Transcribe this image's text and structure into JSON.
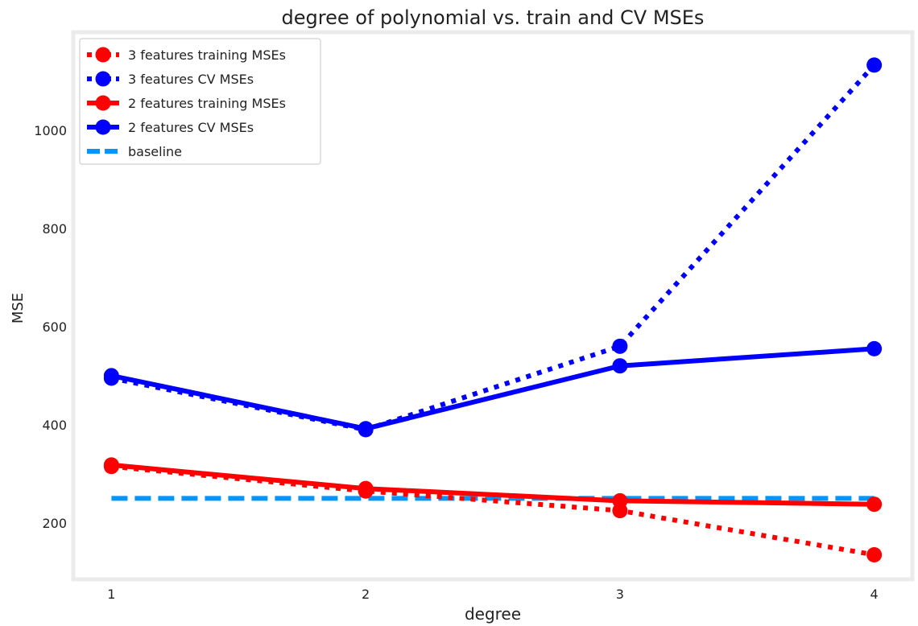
{
  "chart_data": {
    "type": "line",
    "title": "degree of polynomial vs. train and CV MSEs",
    "xlabel": "degree",
    "ylabel": "MSE",
    "x": [
      1,
      2,
      3,
      4
    ],
    "xlim": [
      0.85,
      4.15
    ],
    "ylim": [
      85,
      1200
    ],
    "xticks": [
      1,
      2,
      3,
      4
    ],
    "yticks": [
      200,
      400,
      600,
      800,
      1000
    ],
    "grid": false,
    "legend_position": "upper-left",
    "series": [
      {
        "name": "3 features training MSEs",
        "values": [
          315,
          265,
          225,
          135
        ],
        "color": "#ff0000",
        "style": "dotted",
        "marker": "circle"
      },
      {
        "name": "3 features CV MSEs",
        "values": [
          495,
          390,
          560,
          1133
        ],
        "color": "#0000ff",
        "style": "dotted",
        "marker": "circle"
      },
      {
        "name": "2 features training MSEs",
        "values": [
          318,
          270,
          245,
          238
        ],
        "color": "#ff0000",
        "style": "solid",
        "marker": "circle"
      },
      {
        "name": "2 features CV MSEs",
        "values": [
          500,
          392,
          520,
          555
        ],
        "color": "#0000ff",
        "style": "solid",
        "marker": "circle"
      },
      {
        "name": "baseline",
        "values": [
          250,
          250,
          250,
          250
        ],
        "color": "#0096ff",
        "style": "dashed",
        "marker": "none"
      }
    ]
  }
}
